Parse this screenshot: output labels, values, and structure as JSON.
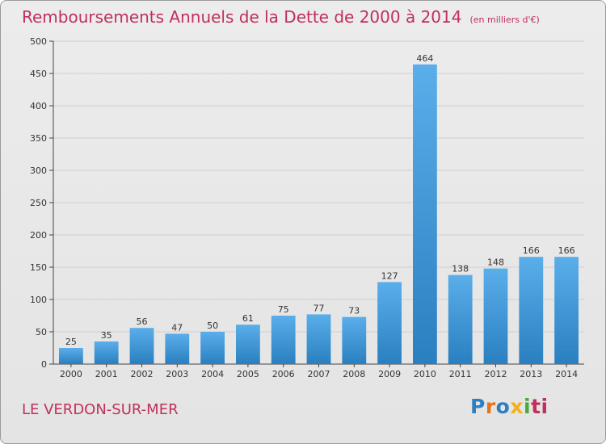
{
  "header": {
    "title": "Remboursements Annuels de la Dette de 2000 à 2014",
    "subtitle": "(en milliers d'€)"
  },
  "footer": {
    "location": "LE VERDON-SUR-MER",
    "logo_letters": [
      "P",
      "r",
      "o",
      "x",
      "i",
      "ti"
    ]
  },
  "colors": {
    "bar_top": "#5aaeea",
    "bar_bottom": "#2a7fc0",
    "title": "#c0305a",
    "grid": "#cfcfcf"
  },
  "chart_data": {
    "type": "bar",
    "title": "Remboursements Annuels de la Dette de 2000 à 2014",
    "subtitle": "(en milliers d'€)",
    "xlabel": "",
    "ylabel": "",
    "categories": [
      "2000",
      "2001",
      "2002",
      "2003",
      "2004",
      "2005",
      "2006",
      "2007",
      "2008",
      "2009",
      "2010",
      "2011",
      "2012",
      "2013",
      "2014"
    ],
    "values": [
      25,
      35,
      56,
      47,
      50,
      61,
      75,
      77,
      73,
      127,
      464,
      138,
      148,
      166,
      166
    ],
    "ylim": [
      0,
      500
    ],
    "yticks": [
      0,
      50,
      100,
      150,
      200,
      250,
      300,
      350,
      400,
      450,
      500
    ],
    "grid": true,
    "legend": "none"
  }
}
